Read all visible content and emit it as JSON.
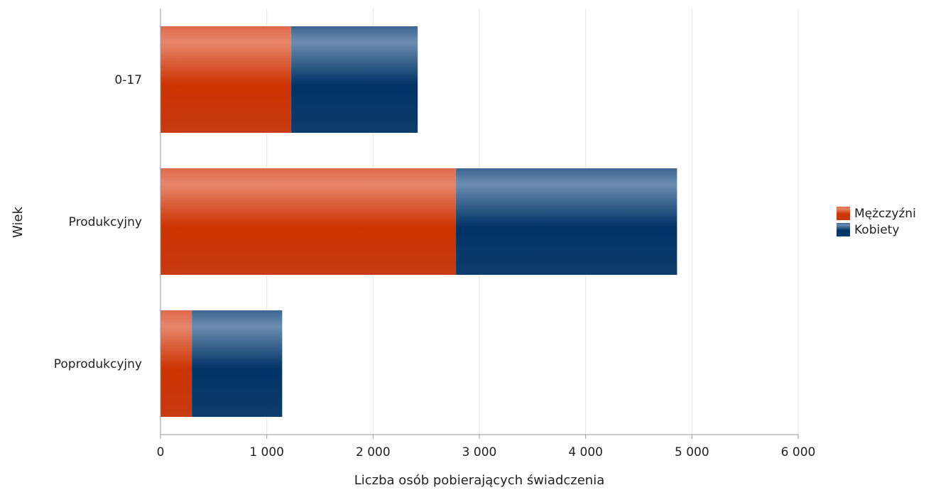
{
  "chart_data": {
    "type": "bar",
    "orientation": "horizontal",
    "stacked": true,
    "categories": [
      "0-17",
      "Produkcyjny",
      "Poprodukcyjny"
    ],
    "series": [
      {
        "name": "Mężczyźni",
        "color": "#cc3300",
        "values": [
          1230,
          2780,
          295
        ]
      },
      {
        "name": "Kobiety",
        "color": "#003366",
        "values": [
          1190,
          2080,
          850
        ]
      }
    ],
    "xlabel": "Liczba osób pobierających świadczenia",
    "ylabel": "Wiek",
    "xlim": [
      0,
      6000
    ],
    "xticks": [
      0,
      1000,
      2000,
      3000,
      4000,
      5000,
      6000
    ],
    "xtick_labels": [
      "0",
      "1 000",
      "2 000",
      "3 000",
      "4 000",
      "5 000",
      "6 000"
    ],
    "grid": "vertical",
    "legend_position": "right"
  }
}
